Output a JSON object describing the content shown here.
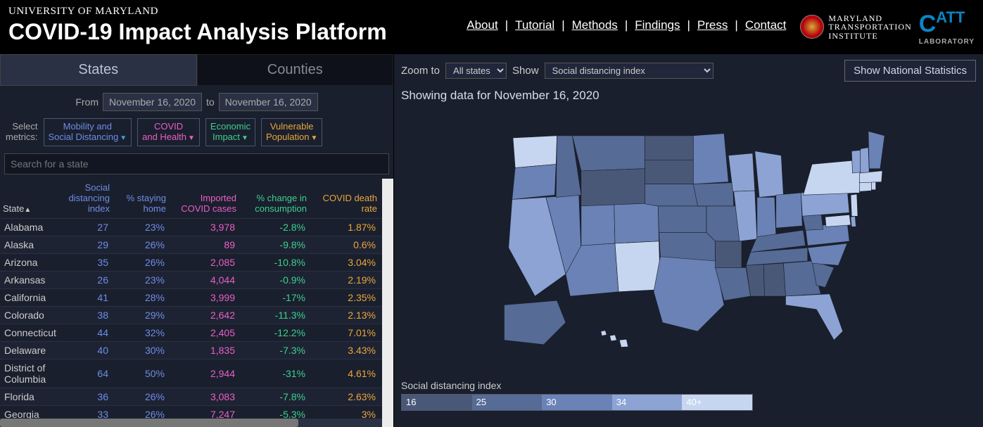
{
  "header": {
    "university": "UNIVERSITY OF MARYLAND",
    "title": "COVID-19 Impact Analysis Platform",
    "nav": [
      "About",
      "Tutorial",
      "Methods",
      "Findings",
      "Press",
      "Contact"
    ],
    "mti": {
      "line1": "MARYLAND",
      "line2": "TRANSPORTATION",
      "line3": "INSTITUTE"
    },
    "catt": {
      "big": "C",
      "mid": "ATT",
      "sub": "LABORATORY"
    }
  },
  "leftPanel": {
    "tabs": {
      "states": "States",
      "counties": "Counties",
      "active": "states"
    },
    "dates": {
      "fromLabel": "From",
      "from": "November 16, 2020",
      "toLabel": "to",
      "to": "November 16, 2020"
    },
    "selectMetricsLabel": {
      "l1": "Select",
      "l2": "metrics:"
    },
    "metrics": [
      {
        "label1": "Mobility and",
        "label2": "Social Distancing",
        "color": "#6d8de6",
        "tri": "#3aa3d8"
      },
      {
        "label1": "COVID",
        "label2": "and Health",
        "color": "#e95fc5",
        "tri": "#e95fc5"
      },
      {
        "label1": "Economic",
        "label2": "Impact",
        "color": "#3bd08f",
        "tri": "#3bd08f"
      },
      {
        "label1": "Vulnerable",
        "label2": "Population",
        "color": "#e9a63c",
        "tri": "#e9a63c"
      }
    ],
    "searchPlaceholder": "Search for a state",
    "columns": {
      "state": "State",
      "sdi": {
        "l1": "Social",
        "l2": "distancing",
        "l3": "index"
      },
      "stay": {
        "l1": "% staying",
        "l2": "home"
      },
      "imp": {
        "l1": "Imported",
        "l2": "COVID cases"
      },
      "cons": {
        "l1": "% change in",
        "l2": "consumption"
      },
      "death": {
        "l1": "COVID death",
        "l2": "rate"
      }
    },
    "rows": [
      {
        "state": "Alabama",
        "sdi": "27",
        "stay": "23%",
        "imp": "3,978",
        "cons": "-2.8%",
        "death": "1.87%"
      },
      {
        "state": "Alaska",
        "sdi": "29",
        "stay": "26%",
        "imp": "89",
        "cons": "-9.8%",
        "death": "0.6%"
      },
      {
        "state": "Arizona",
        "sdi": "35",
        "stay": "26%",
        "imp": "2,085",
        "cons": "-10.8%",
        "death": "3.04%"
      },
      {
        "state": "Arkansas",
        "sdi": "26",
        "stay": "23%",
        "imp": "4,044",
        "cons": "-0.9%",
        "death": "2.19%"
      },
      {
        "state": "California",
        "sdi": "41",
        "stay": "28%",
        "imp": "3,999",
        "cons": "-17%",
        "death": "2.35%"
      },
      {
        "state": "Colorado",
        "sdi": "38",
        "stay": "29%",
        "imp": "2,642",
        "cons": "-11.3%",
        "death": "2.13%"
      },
      {
        "state": "Connecticut",
        "sdi": "44",
        "stay": "32%",
        "imp": "2,405",
        "cons": "-12.2%",
        "death": "7.01%"
      },
      {
        "state": "Delaware",
        "sdi": "40",
        "stay": "30%",
        "imp": "1,835",
        "cons": "-7.3%",
        "death": "3.43%"
      },
      {
        "state": "District of Columbia",
        "sdi": "64",
        "stay": "50%",
        "imp": "2,944",
        "cons": "-31%",
        "death": "4.61%"
      },
      {
        "state": "Florida",
        "sdi": "36",
        "stay": "26%",
        "imp": "3,083",
        "cons": "-7.8%",
        "death": "2.63%"
      },
      {
        "state": "Georgia",
        "sdi": "33",
        "stay": "26%",
        "imp": "7,247",
        "cons": "-5.3%",
        "death": "3%"
      }
    ]
  },
  "rightPanel": {
    "zoomLabel": "Zoom to",
    "zoomValue": "All states",
    "showLabel": "Show",
    "showValue": "Social distancing index",
    "statsBtn": "Show National Statistics",
    "showing": "Showing data for November 16, 2020",
    "legendTitle": "Social distancing index",
    "legend": [
      {
        "label": "16",
        "color": "#4a5878"
      },
      {
        "label": "25",
        "color": "#566b95"
      },
      {
        "label": "30",
        "color": "#6a82b5"
      },
      {
        "label": "34",
        "color": "#8ca3d4"
      },
      {
        "label": "40+",
        "color": "#c6d6f0"
      }
    ],
    "mapColors": {
      "shade1": "#4a5878",
      "shade2": "#566b95",
      "shade3": "#6a82b5",
      "shade4": "#8ca3d4",
      "shade5": "#c6d6f0"
    }
  }
}
